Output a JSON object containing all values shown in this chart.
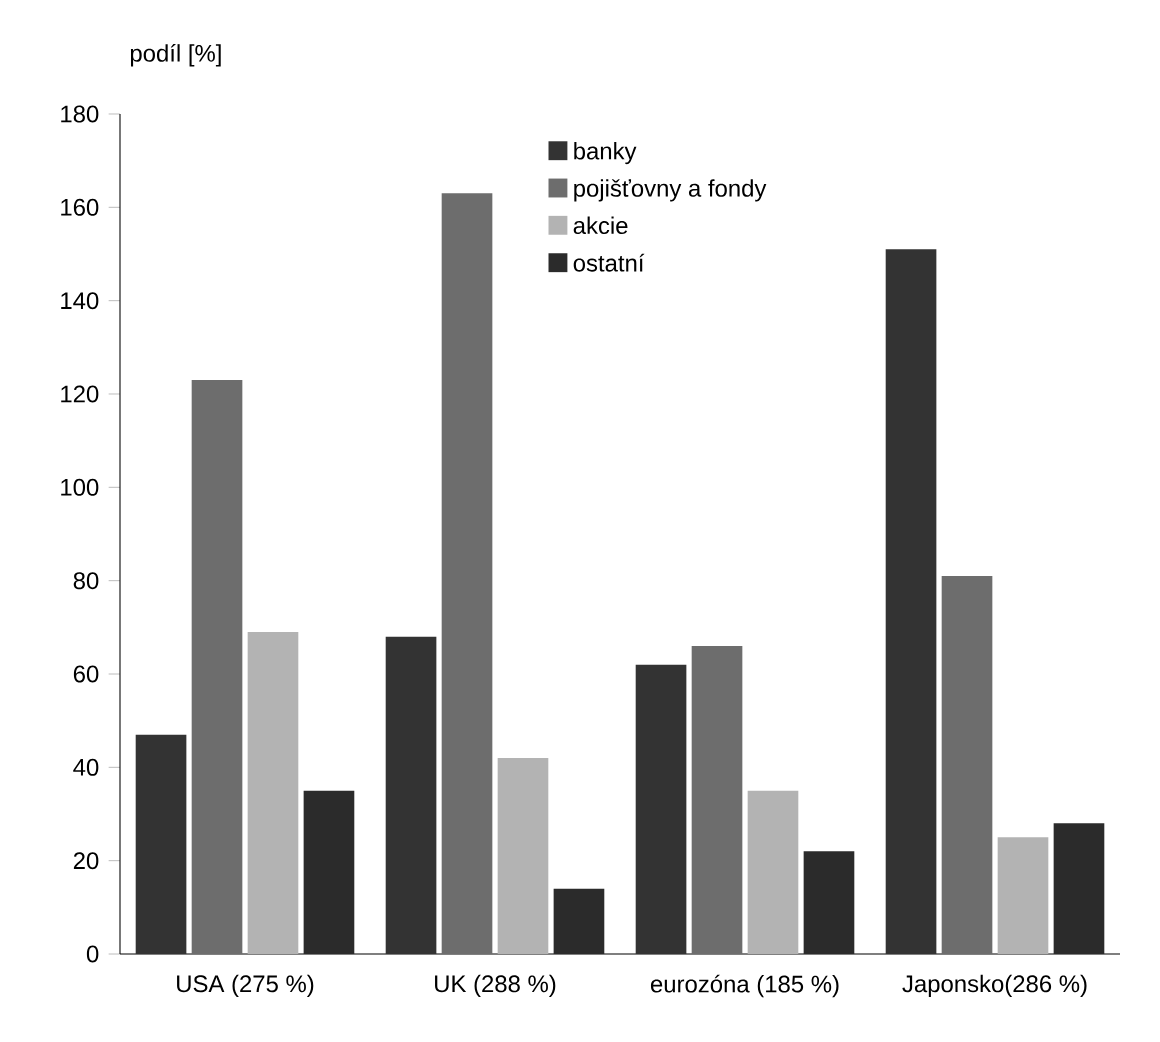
{
  "chart_data": {
    "type": "bar",
    "ylabel": "podíl [%]",
    "categories": [
      "USA (275 %)",
      "UK (288 %)",
      "eurozóna (185 %)",
      "Japonsko(286 %)"
    ],
    "series": [
      {
        "name": "banky",
        "color": "#333333",
        "values": [
          47,
          68,
          62,
          151
        ]
      },
      {
        "name": "pojišťovny a fondy",
        "color": "#6d6d6d",
        "values": [
          123,
          163,
          66,
          81
        ]
      },
      {
        "name": "akcie",
        "color": "#b3b3b3",
        "values": [
          69,
          42,
          35,
          25
        ]
      },
      {
        "name": "ostatní",
        "color": "#2b2b2b",
        "values": [
          35,
          14,
          22,
          28
        ]
      }
    ],
    "ylim": [
      0,
      180
    ],
    "yticks": [
      0,
      20,
      40,
      60,
      80,
      100,
      120,
      140,
      160,
      180
    ],
    "grid": false,
    "legend": "top"
  }
}
